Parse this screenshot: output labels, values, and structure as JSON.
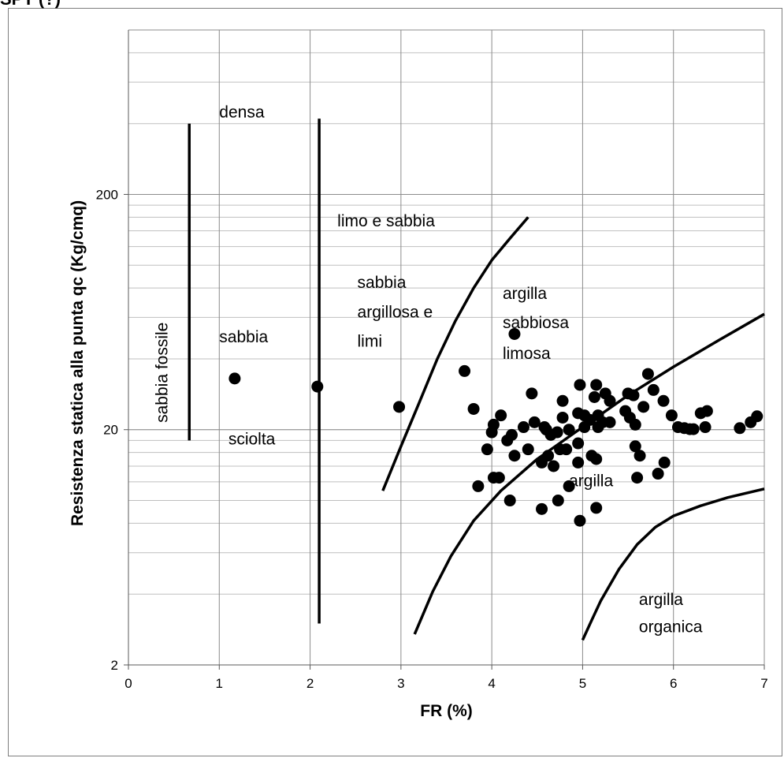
{
  "corner_text": "SPT (?)",
  "chart_data": {
    "type": "scatter",
    "title": "",
    "xlabel": "FR (%)",
    "ylabel": "Resistenza statica alla punta qc (Kg/cmq)",
    "xlim": [
      0,
      7
    ],
    "ylim": [
      2,
      1000
    ],
    "yscale": "log",
    "grid": true,
    "x_ticks": [
      "0",
      "1",
      "2",
      "3",
      "4",
      "5",
      "6",
      "7"
    ],
    "y_ticks": [
      "2",
      "20",
      "200"
    ],
    "points": [
      [
        1.17,
        33
      ],
      [
        2.08,
        30.5
      ],
      [
        2.98,
        25
      ],
      [
        3.7,
        35.5
      ],
      [
        3.8,
        24.5
      ],
      [
        4.25,
        51
      ],
      [
        4.44,
        28.5
      ],
      [
        4.78,
        26.5
      ],
      [
        4.97,
        31
      ],
      [
        5.15,
        31
      ],
      [
        5.13,
        27.5
      ],
      [
        5.25,
        28.5
      ],
      [
        5.3,
        26.5
      ],
      [
        5.5,
        28.5
      ],
      [
        5.56,
        28
      ],
      [
        5.72,
        34.5
      ],
      [
        5.78,
        29.5
      ],
      [
        5.89,
        26.5
      ],
      [
        5.67,
        25
      ],
      [
        5.47,
        24
      ],
      [
        5.52,
        22.5
      ],
      [
        5.58,
        21
      ],
      [
        5.98,
        23
      ],
      [
        6.3,
        23.5
      ],
      [
        6.37,
        24
      ],
      [
        6.05,
        20.5
      ],
      [
        6.12,
        20.3
      ],
      [
        6.18,
        20.1
      ],
      [
        6.22,
        20.1
      ],
      [
        6.35,
        20.5
      ],
      [
        6.73,
        20.3
      ],
      [
        6.85,
        21.5
      ],
      [
        6.92,
        22.8
      ],
      [
        4.02,
        21
      ],
      [
        4.1,
        23
      ],
      [
        4.0,
        19.5
      ],
      [
        4.22,
        19
      ],
      [
        4.35,
        20.5
      ],
      [
        4.47,
        21.5
      ],
      [
        4.58,
        20.5
      ],
      [
        4.65,
        19
      ],
      [
        4.72,
        19.5
      ],
      [
        4.78,
        22.5
      ],
      [
        4.85,
        20
      ],
      [
        4.95,
        23.5
      ],
      [
        5.02,
        23
      ],
      [
        5.08,
        22
      ],
      [
        5.17,
        23
      ],
      [
        5.22,
        21.5
      ],
      [
        5.02,
        20.5
      ],
      [
        5.17,
        20.5
      ],
      [
        5.3,
        21.5
      ],
      [
        5.58,
        17
      ],
      [
        5.63,
        15.5
      ],
      [
        5.83,
        13
      ],
      [
        5.9,
        14.5
      ],
      [
        3.95,
        16.5
      ],
      [
        4.17,
        18
      ],
      [
        4.25,
        15.5
      ],
      [
        4.4,
        16.5
      ],
      [
        4.55,
        14.5
      ],
      [
        4.62,
        15.5
      ],
      [
        4.68,
        14
      ],
      [
        4.75,
        16.5
      ],
      [
        4.82,
        16.5
      ],
      [
        4.95,
        17.5
      ],
      [
        4.95,
        14.5
      ],
      [
        5.1,
        15.5
      ],
      [
        5.15,
        15
      ],
      [
        4.02,
        12.5
      ],
      [
        4.08,
        12.5
      ],
      [
        3.85,
        11.5
      ],
      [
        4.2,
        10
      ],
      [
        4.55,
        9.2
      ],
      [
        4.73,
        10
      ],
      [
        4.85,
        11.5
      ],
      [
        4.97,
        8.2
      ],
      [
        5.15,
        9.3
      ],
      [
        5.6,
        12.5
      ],
      [
        4.6,
        20
      ]
    ],
    "lines": [
      {
        "type": "vertical",
        "x": 0.67,
        "y_range": [
          18,
          400
        ]
      },
      {
        "type": "vertical",
        "x": 2.1,
        "y_range": [
          3,
          420
        ]
      },
      {
        "type": "curve",
        "points": [
          [
            2.8,
            11
          ],
          [
            3.0,
            17
          ],
          [
            3.2,
            26
          ],
          [
            3.4,
            40
          ],
          [
            3.6,
            58
          ],
          [
            3.8,
            80
          ],
          [
            4.0,
            105
          ],
          [
            4.2,
            130
          ],
          [
            4.4,
            160
          ]
        ]
      },
      {
        "type": "curve",
        "points": [
          [
            3.15,
            2.7
          ],
          [
            3.35,
            4.1
          ],
          [
            3.55,
            5.8
          ],
          [
            3.8,
            8.2
          ],
          [
            4.1,
            11
          ],
          [
            4.5,
            15
          ],
          [
            5.0,
            20.5
          ],
          [
            5.5,
            28
          ],
          [
            6.0,
            37
          ],
          [
            6.5,
            48
          ],
          [
            7.0,
            62
          ]
        ]
      },
      {
        "type": "curve",
        "points": [
          [
            5.0,
            2.55
          ],
          [
            5.1,
            3.1
          ],
          [
            5.2,
            3.75
          ],
          [
            5.4,
            5.1
          ],
          [
            5.6,
            6.5
          ],
          [
            5.8,
            7.7
          ],
          [
            6.0,
            8.6
          ],
          [
            6.3,
            9.5
          ],
          [
            6.6,
            10.3
          ],
          [
            7.0,
            11.2
          ]
        ]
      }
    ],
    "annotations": [
      {
        "text": "densa",
        "x": 1.0,
        "y": 425
      },
      {
        "text": "limo e sabbia",
        "x": 2.3,
        "y": 146
      },
      {
        "text": "sabbia",
        "x": 1.0,
        "y": 47
      },
      {
        "text": "sciolta",
        "x": 1.1,
        "y": 17.3
      },
      {
        "text": "sabbia fossile",
        "x": 0.43,
        "y": 35,
        "rotate": -90
      },
      {
        "text": "sabbia",
        "x": 2.52,
        "y": 80
      },
      {
        "text": "argillosa e",
        "x": 2.52,
        "y": 60
      },
      {
        "text": "limi",
        "x": 2.52,
        "y": 45
      },
      {
        "text": "argilla",
        "x": 4.12,
        "y": 72
      },
      {
        "text": "sabbiosa",
        "x": 4.12,
        "y": 54
      },
      {
        "text": "limosa",
        "x": 4.12,
        "y": 40
      },
      {
        "text": "argilla",
        "x": 4.85,
        "y": 11.5
      },
      {
        "text": "argilla",
        "x": 5.62,
        "y": 3.6
      },
      {
        "text": "organica",
        "x": 5.62,
        "y": 2.75
      }
    ]
  }
}
